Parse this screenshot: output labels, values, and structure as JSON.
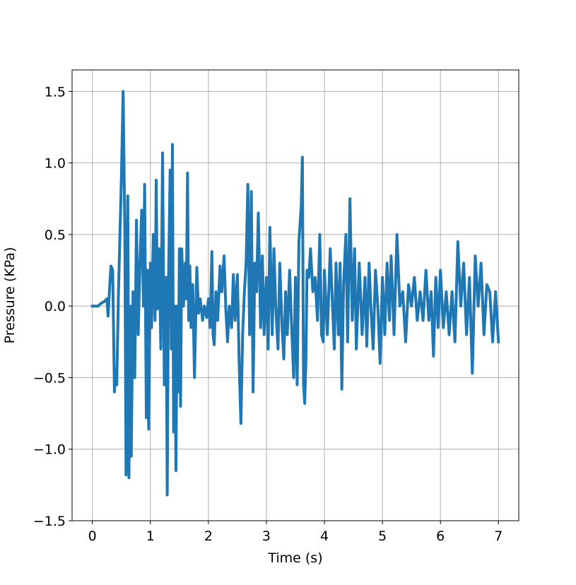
{
  "chart_data": {
    "type": "line",
    "xlabel": "Time (s)",
    "ylabel": "Pressure (KPa)",
    "x": [
      0,
      0.1,
      0.15,
      0.2,
      0.25,
      0.27,
      0.3,
      0.32,
      0.35,
      0.38,
      0.4,
      0.42,
      0.45,
      0.5,
      0.53,
      0.56,
      0.58,
      0.61,
      0.63,
      0.65,
      0.67,
      0.7,
      0.73,
      0.76,
      0.79,
      0.82,
      0.85,
      0.88,
      0.9,
      0.93,
      0.95,
      0.97,
      1.0,
      1.02,
      1.05,
      1.08,
      1.1,
      1.12,
      1.15,
      1.18,
      1.21,
      1.24,
      1.27,
      1.29,
      1.31,
      1.34,
      1.36,
      1.38,
      1.4,
      1.42,
      1.44,
      1.46,
      1.48,
      1.5,
      1.52,
      1.54,
      1.57,
      1.6,
      1.62,
      1.64,
      1.66,
      1.68,
      1.7,
      1.73,
      1.76,
      1.8,
      1.83,
      1.86,
      1.9,
      1.93,
      1.97,
      2.0,
      2.03,
      2.06,
      2.08,
      2.1,
      2.13,
      2.16,
      2.2,
      2.23,
      2.27,
      2.3,
      2.33,
      2.36,
      2.4,
      2.43,
      2.46,
      2.5,
      2.53,
      2.56,
      2.59,
      2.62,
      2.65,
      2.68,
      2.71,
      2.74,
      2.77,
      2.8,
      2.83,
      2.86,
      2.9,
      2.93,
      2.96,
      3.0,
      3.03,
      3.06,
      3.1,
      3.13,
      3.16,
      3.2,
      3.23,
      3.27,
      3.3,
      3.33,
      3.36,
      3.4,
      3.43,
      3.47,
      3.5,
      3.53,
      3.56,
      3.6,
      3.62,
      3.64,
      3.66,
      3.68,
      3.7,
      3.73,
      3.76,
      3.8,
      3.84,
      3.88,
      3.92,
      3.95,
      3.98,
      4.0,
      4.05,
      4.1,
      4.13,
      4.17,
      4.2,
      4.24,
      4.27,
      4.3,
      4.33,
      4.37,
      4.4,
      4.44,
      4.48,
      4.52,
      4.55,
      4.6,
      4.65,
      4.7,
      4.73,
      4.77,
      4.8,
      4.84,
      4.88,
      4.92,
      4.96,
      5.0,
      5.04,
      5.08,
      5.12,
      5.15,
      5.2,
      5.25,
      5.3,
      5.35,
      5.4,
      5.45,
      5.5,
      5.55,
      5.6,
      5.65,
      5.7,
      5.75,
      5.8,
      5.84,
      5.88,
      5.92,
      5.96,
      6.0,
      6.05,
      6.1,
      6.15,
      6.2,
      6.25,
      6.3,
      6.35,
      6.4,
      6.45,
      6.5,
      6.55,
      6.6,
      6.65,
      6.7,
      6.75,
      6.8,
      6.85,
      6.9,
      6.95,
      7.0
    ],
    "series": [
      {
        "name": "Pressure",
        "color": "#1f77b4",
        "values": [
          0,
          0,
          0.02,
          0.03,
          0.05,
          -0.07,
          0.15,
          0.28,
          0.25,
          -0.6,
          -0.45,
          -0.55,
          0.1,
          0.9,
          1.5,
          0.5,
          -1.18,
          0.77,
          -1.2,
          0,
          -1.05,
          0.1,
          -0.5,
          0.6,
          -0.2,
          0.3,
          0.67,
          0,
          0.85,
          -0.78,
          0.25,
          -0.86,
          0.3,
          -0.15,
          0.5,
          -0.1,
          0.88,
          -0.02,
          0.4,
          -0.3,
          1.07,
          -0.55,
          0.2,
          -1.32,
          0.1,
          0.95,
          -0.3,
          1.13,
          -0.88,
          0,
          -1.15,
          0,
          -0.6,
          0.4,
          -0.7,
          0.4,
          0,
          0.3,
          0.05,
          0.93,
          -0.1,
          0.28,
          -0.15,
          0.15,
          -0.5,
          0.27,
          -0.05,
          0.05,
          -0.1,
          0,
          -0.08,
          0.05,
          -0.15,
          0.38,
          -0.2,
          -0.27,
          0.1,
          -0.1,
          0.28,
          0.1,
          0.35,
          -0.02,
          -0.25,
          0,
          -0.15,
          0.22,
          -0.1,
          0.22,
          -0.4,
          -0.82,
          -0.2,
          0.1,
          0.3,
          0.85,
          -0.2,
          0.8,
          -0.6,
          0.3,
          0.1,
          0.65,
          -0.15,
          0.35,
          -0.2,
          0.2,
          -0.3,
          0.55,
          -0.2,
          0.4,
          0,
          -0.3,
          0.3,
          -0.15,
          -0.37,
          0.1,
          -0.2,
          0.25,
          -0.1,
          -0.5,
          0.2,
          -0.55,
          0.45,
          0.7,
          1.04,
          -0.55,
          -0.68,
          -0.4,
          0.25,
          0.2,
          0.4,
          0.1,
          0.2,
          -0.1,
          0.5,
          -0.2,
          -0.25,
          0.25,
          -0.2,
          0.4,
          0.1,
          -0.3,
          0.3,
          -0.2,
          0.3,
          -0.58,
          0.15,
          0.5,
          -0.25,
          0.75,
          -0.1,
          0.4,
          -0.3,
          0.3,
          -0.2,
          0.2,
          -0.28,
          0.3,
          0,
          -0.3,
          0.25,
          0,
          -0.4,
          0.2,
          -0.2,
          0.3,
          -0.1,
          0.35,
          -0.2,
          0.5,
          0,
          0.1,
          -0.25,
          0.15,
          0,
          0.2,
          -0.1,
          0.1,
          -0.1,
          0.25,
          -0.1,
          0.1,
          -0.35,
          0.2,
          -0.15,
          0.25,
          -0.15,
          0.1,
          -0.2,
          0.1,
          -0.25,
          0.45,
          0,
          0.3,
          -0.2,
          0.2,
          -0.47,
          0.35,
          0,
          0.3,
          -0.2,
          0.15,
          0.1,
          -0.25,
          0.1,
          -0.25
        ]
      }
    ],
    "xlim": [
      -0.35,
      7.35
    ],
    "xticks": [
      0,
      1,
      2,
      3,
      4,
      5,
      6,
      7
    ],
    "ylim": [
      -1.5,
      1.65
    ],
    "yticks": [
      {
        "value": -1.5,
        "label": "−1.5"
      },
      {
        "value": -1.0,
        "label": "−1.0"
      },
      {
        "value": -0.5,
        "label": "−0.5"
      },
      {
        "value": 0,
        "label": "0.0"
      },
      0.5,
      {
        "value": 1.0,
        "label": "1.0"
      },
      1.5
    ],
    "grid": true
  }
}
